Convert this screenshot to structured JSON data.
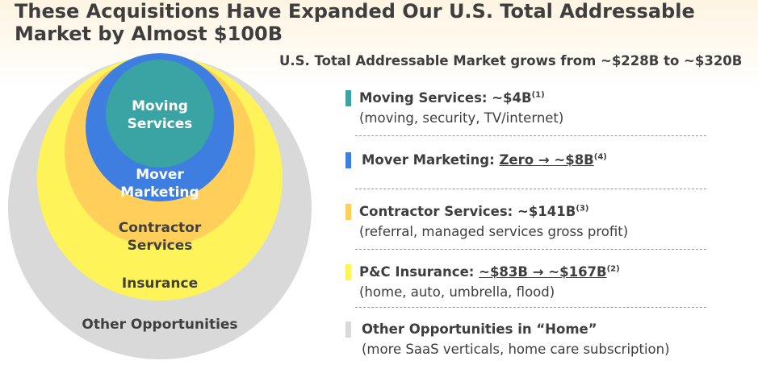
{
  "title_line1": "These Acquisitions Have Expanded Our U.S. Total Addressable",
  "title_line2": "Market by Almost $100B",
  "subtitle": "U.S. Total Addressable Market grows from ~$228B to ~$320B",
  "circles": {
    "moving_services": [
      "Moving",
      "Services"
    ],
    "mover_marketing": [
      "Mover",
      "Marketing"
    ],
    "contractor_services": [
      "Contractor",
      "Services"
    ],
    "insurance": "Insurance",
    "other": "Other Opportunities"
  },
  "colors": {
    "moving_services": "#3aa3a3",
    "mover_marketing": "#3e7ee0",
    "contractor_services": "#ffcf59",
    "insurance": "#fff35a",
    "other": "#d9d9d9"
  },
  "legend": {
    "moving": {
      "title": "Moving Services: ~$4B",
      "sup": "(1)",
      "desc": "(moving, security, TV/internet)"
    },
    "mover": {
      "title_prefix": "Mover Marketing: ",
      "title_underlined": "Zero → ~$8B",
      "sup": "(4)"
    },
    "contractor": {
      "title": "Contractor Services: ~$141B",
      "sup": "(3)",
      "desc": "(referral, managed services gross profit)"
    },
    "insurance": {
      "title_prefix": "P&C Insurance: ",
      "title_underlined": "~$83B → ~$167B",
      "sup": "(2)",
      "desc": "(home, auto, umbrella, flood)"
    },
    "other": {
      "title": "Other Opportunities in “Home”",
      "desc": "(more SaaS verticals, home care subscription)"
    }
  }
}
